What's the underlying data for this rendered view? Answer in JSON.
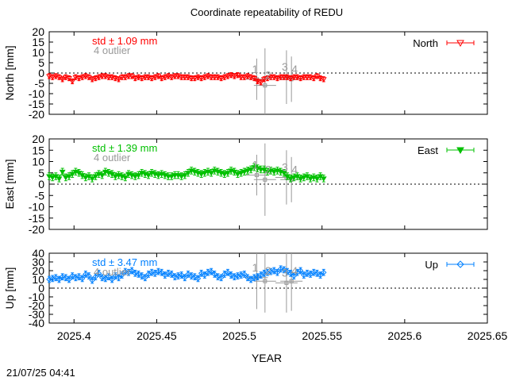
{
  "title": "Coordinate repeatability of REDU",
  "timestamp": "21/07/25 04:41",
  "x_axis": {
    "label": "YEAR",
    "range": [
      2025.385,
      2025.65
    ],
    "ticks": [
      "2025.4",
      "2025.45",
      "2025.5",
      "2025.55",
      "2025.6",
      "2025.65"
    ],
    "tick_values": [
      2025.4,
      2025.45,
      2025.5,
      2025.55,
      2025.6,
      2025.65
    ]
  },
  "chart_data": [
    {
      "type": "scatter",
      "panel": "north",
      "ylabel": "North [mm]",
      "ylim": [
        -20,
        20
      ],
      "ytick_step": 5,
      "legend": "North",
      "legend_position": "top-right",
      "color": "#ff0000",
      "std_label": "std ± 1.09 mm",
      "outlier_label": "4 outlier",
      "outlier_ids": [
        "1",
        "2",
        "3",
        "4"
      ],
      "x_start": 2025.385,
      "x_step": 0.002,
      "y": [
        -1.5,
        -2,
        -1.5,
        -2,
        -3,
        -2,
        -2.5,
        -4,
        -2,
        -2.5,
        -2,
        -1.5,
        -2,
        -3,
        -2.5,
        -2,
        -1.5,
        -1.5,
        -2,
        -2,
        -2.5,
        -3,
        -2,
        -2,
        -1.5,
        -1.5,
        -2.5,
        -2,
        -2.5,
        -2,
        -2,
        -2.5,
        -2,
        -1.5,
        -2.5,
        -2,
        -1.5,
        -2,
        -1.5,
        -1.5,
        -2,
        -2,
        -2,
        -2.5,
        -2.5,
        -2,
        -2.5,
        -2,
        -1.5,
        -2,
        -2,
        -2,
        -2.5,
        -2,
        -1.5,
        -1,
        -1.5,
        -1,
        -2,
        -2,
        -1.5,
        -2,
        -2.5,
        -4,
        -4.5,
        -3,
        -2.5,
        -2,
        -2,
        -2.5,
        -2,
        -2,
        -2,
        -2.5,
        -2,
        -2,
        -2.5,
        -2,
        -2,
        -2,
        -2.5,
        -1.5,
        -2.5,
        -3
      ],
      "err": 1.2,
      "outliers": [
        {
          "id": "1",
          "x": 2025.5105,
          "y": -3,
          "err": 10
        },
        {
          "id": "2",
          "x": 2025.5155,
          "y": -6,
          "err": 18
        },
        {
          "id": "3",
          "x": 2025.5285,
          "y": -2,
          "err": 13
        },
        {
          "id": "4",
          "x": 2025.5315,
          "y": -3,
          "err": 11
        }
      ]
    },
    {
      "type": "scatter",
      "panel": "east",
      "ylabel": "East [mm]",
      "ylim": [
        -20,
        20
      ],
      "ytick_step": 5,
      "legend": "East",
      "legend_position": "top-right",
      "color": "#00c000",
      "std_label": "std ± 1.39 mm",
      "outlier_label": "4 outlier",
      "outlier_ids": [
        "1",
        "2",
        "3",
        "4"
      ],
      "x_start": 2025.385,
      "x_step": 0.002,
      "y": [
        3.5,
        3,
        3.5,
        2.5,
        5.5,
        3,
        3.5,
        4.5,
        5.5,
        5,
        4,
        3,
        3.5,
        2.5,
        3.5,
        4.5,
        4,
        5.5,
        5,
        4.5,
        3.5,
        4,
        3.5,
        3,
        4.5,
        4,
        3.5,
        4,
        5,
        4.5,
        4,
        5,
        4.5,
        4,
        4.5,
        4,
        3.5,
        3.5,
        4,
        4,
        3.5,
        4,
        5,
        6,
        5.5,
        5,
        4.5,
        5,
        5.5,
        5,
        6,
        5.5,
        5,
        4.5,
        5,
        6,
        5.5,
        4.5,
        5,
        5.5,
        6,
        6.5,
        7.5,
        7,
        6.5,
        6.5,
        5.5,
        6,
        5.5,
        6,
        5.5,
        5,
        3.5,
        2.5,
        3,
        3.5,
        2.5,
        3,
        3.5,
        2.5,
        3,
        2.5,
        3.5,
        2.5
      ],
      "err": 1.5,
      "outliers": [
        {
          "id": "1",
          "x": 2025.5105,
          "y": 4,
          "err": 9
        },
        {
          "id": "2",
          "x": 2025.5155,
          "y": 2,
          "err": 16
        },
        {
          "id": "3",
          "x": 2025.5285,
          "y": 3,
          "err": 12
        },
        {
          "id": "4",
          "x": 2025.5315,
          "y": 2,
          "err": 10
        }
      ]
    },
    {
      "type": "scatter",
      "panel": "up",
      "ylabel": "Up [mm]",
      "ylim": [
        -40,
        40
      ],
      "ytick_step": 10,
      "legend": "Up",
      "legend_position": "top-right",
      "color": "#0080ff",
      "std_label": "std ± 3.47 mm",
      "outlier_label": "4 outlier",
      "outlier_ids": [
        "1",
        "2",
        "3",
        "4"
      ],
      "x_start": 2025.385,
      "x_step": 0.002,
      "y": [
        10,
        11,
        12,
        10,
        13,
        12,
        10,
        14,
        12,
        13,
        11,
        16,
        14,
        9,
        13,
        17,
        12,
        11,
        13,
        10,
        14,
        12,
        15,
        19,
        18,
        20,
        17,
        16,
        14,
        12,
        16,
        18,
        17,
        19,
        18,
        15,
        17,
        16,
        13,
        14,
        15,
        12,
        16,
        14,
        13,
        11,
        17,
        15,
        18,
        19,
        16,
        13,
        12,
        16,
        18,
        15,
        13,
        14,
        15,
        16,
        12,
        10,
        12,
        13,
        15,
        17,
        18,
        19,
        20,
        18,
        22,
        21,
        19,
        17,
        14,
        18,
        20,
        15,
        17,
        16,
        18,
        17,
        15,
        18
      ],
      "err": 3.5,
      "outliers": [
        {
          "id": "1",
          "x": 2025.5105,
          "y": 12,
          "err": 36
        },
        {
          "id": "2",
          "x": 2025.5155,
          "y": 8,
          "err": 36
        },
        {
          "id": "3",
          "x": 2025.5285,
          "y": 6,
          "err": 34
        },
        {
          "id": "4",
          "x": 2025.5315,
          "y": 8,
          "err": 34
        }
      ]
    }
  ]
}
